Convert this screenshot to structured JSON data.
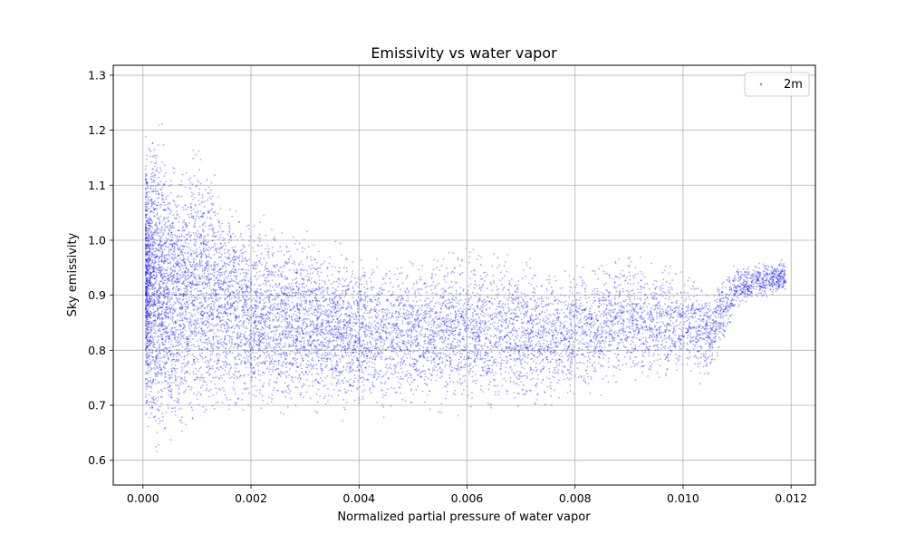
{
  "chart_data": {
    "type": "scatter",
    "title": "Emissivity vs water vapor",
    "xlabel": "Normalized partial pressure of water vapor",
    "ylabel": "Sky emissivity",
    "xlim": [
      -0.00055,
      0.01245
    ],
    "ylim": [
      0.555,
      1.318
    ],
    "xticks": [
      {
        "value": 0.0,
        "label": "0.000"
      },
      {
        "value": 0.002,
        "label": "0.002"
      },
      {
        "value": 0.004,
        "label": "0.004"
      },
      {
        "value": 0.006,
        "label": "0.006"
      },
      {
        "value": 0.008,
        "label": "0.008"
      },
      {
        "value": 0.01,
        "label": "0.010"
      },
      {
        "value": 0.012,
        "label": "0.012"
      }
    ],
    "yticks": [
      {
        "value": 0.6,
        "label": "0.6"
      },
      {
        "value": 0.7,
        "label": "0.7"
      },
      {
        "value": 0.8,
        "label": "0.8"
      },
      {
        "value": 0.9,
        "label": "0.9"
      },
      {
        "value": 1.0,
        "label": "1.0"
      },
      {
        "value": 1.1,
        "label": "1.1"
      },
      {
        "value": 1.2,
        "label": "1.2"
      },
      {
        "value": 1.3,
        "label": "1.3"
      }
    ],
    "grid": true,
    "legend_position": "top-right",
    "series": [
      {
        "name": "2m",
        "color": "#0000ff",
        "envelope": [
          {
            "x": 5e-05,
            "y_min": 0.64,
            "y_max": 1.2
          },
          {
            "x": 0.0002,
            "y_min": 0.6,
            "y_max": 1.25
          },
          {
            "x": 0.0004,
            "y_min": 0.59,
            "y_max": 1.22
          },
          {
            "x": 0.0006,
            "y_min": 0.6,
            "y_max": 1.17
          },
          {
            "x": 0.001,
            "y_min": 0.63,
            "y_max": 1.21
          },
          {
            "x": 0.0015,
            "y_min": 0.64,
            "y_max": 1.11
          },
          {
            "x": 0.002,
            "y_min": 0.65,
            "y_max": 1.07
          },
          {
            "x": 0.0025,
            "y_min": 0.66,
            "y_max": 1.05
          },
          {
            "x": 0.003,
            "y_min": 0.66,
            "y_max": 1.04
          },
          {
            "x": 0.0035,
            "y_min": 0.66,
            "y_max": 1.02
          },
          {
            "x": 0.004,
            "y_min": 0.66,
            "y_max": 1.0
          },
          {
            "x": 0.0045,
            "y_min": 0.67,
            "y_max": 0.99
          },
          {
            "x": 0.005,
            "y_min": 0.67,
            "y_max": 0.99
          },
          {
            "x": 0.0055,
            "y_min": 0.67,
            "y_max": 0.99
          },
          {
            "x": 0.006,
            "y_min": 0.67,
            "y_max": 1.01
          },
          {
            "x": 0.0065,
            "y_min": 0.67,
            "y_max": 0.99
          },
          {
            "x": 0.007,
            "y_min": 0.67,
            "y_max": 0.99
          },
          {
            "x": 0.0075,
            "y_min": 0.67,
            "y_max": 0.98
          },
          {
            "x": 0.008,
            "y_min": 0.69,
            "y_max": 0.98
          },
          {
            "x": 0.0085,
            "y_min": 0.71,
            "y_max": 0.98
          },
          {
            "x": 0.009,
            "y_min": 0.72,
            "y_max": 0.99
          },
          {
            "x": 0.0095,
            "y_min": 0.72,
            "y_max": 0.98
          },
          {
            "x": 0.01,
            "y_min": 0.73,
            "y_max": 0.96
          },
          {
            "x": 0.0105,
            "y_min": 0.73,
            "y_max": 0.93
          },
          {
            "x": 0.011,
            "y_min": 0.87,
            "y_max": 0.96
          },
          {
            "x": 0.0119,
            "y_min": 0.9,
            "y_max": 0.97
          }
        ]
      }
    ]
  }
}
